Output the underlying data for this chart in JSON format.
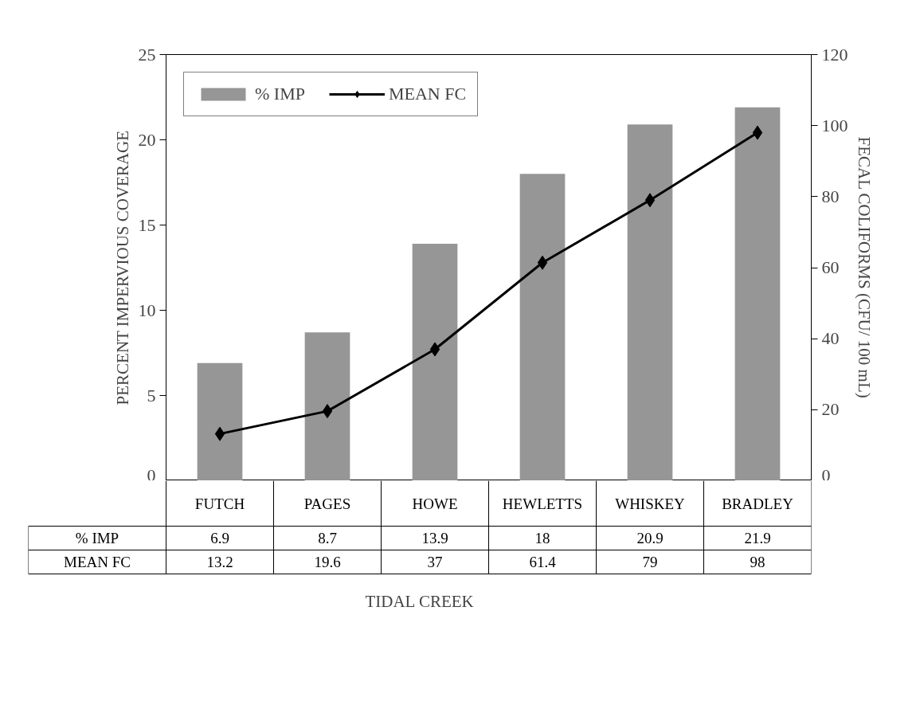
{
  "chart_data": {
    "type": "bar",
    "categories": [
      "FUTCH",
      "PAGES",
      "HOWE",
      "HEWLETTS",
      "WHISKEY",
      "BRADLEY"
    ],
    "series": [
      {
        "name": "% IMP",
        "color": "#969696",
        "values": [
          6.9,
          8.7,
          13.9,
          18,
          20.9,
          21.9
        ]
      },
      {
        "name": "MEAN FC",
        "type": "line",
        "axis": "y2",
        "color": "#000000",
        "values": [
          13.2,
          19.6,
          37,
          61.4,
          79,
          98
        ]
      }
    ],
    "marker": "diamond",
    "ylabel": "PERCENT IMPERVIOUS COVERAGE",
    "y2label": "FECAL COLIFORMS (CFU/ 100 mL)",
    "xlabel": "TIDAL CREEK",
    "ylim": [
      0,
      25
    ],
    "yticks": [
      0,
      5,
      10,
      15,
      20,
      25
    ],
    "y2lim": [
      0,
      120
    ],
    "y2ticks": [
      0,
      20,
      40,
      60,
      80,
      100,
      120
    ],
    "legend": "top left",
    "data_labels": true
  }
}
